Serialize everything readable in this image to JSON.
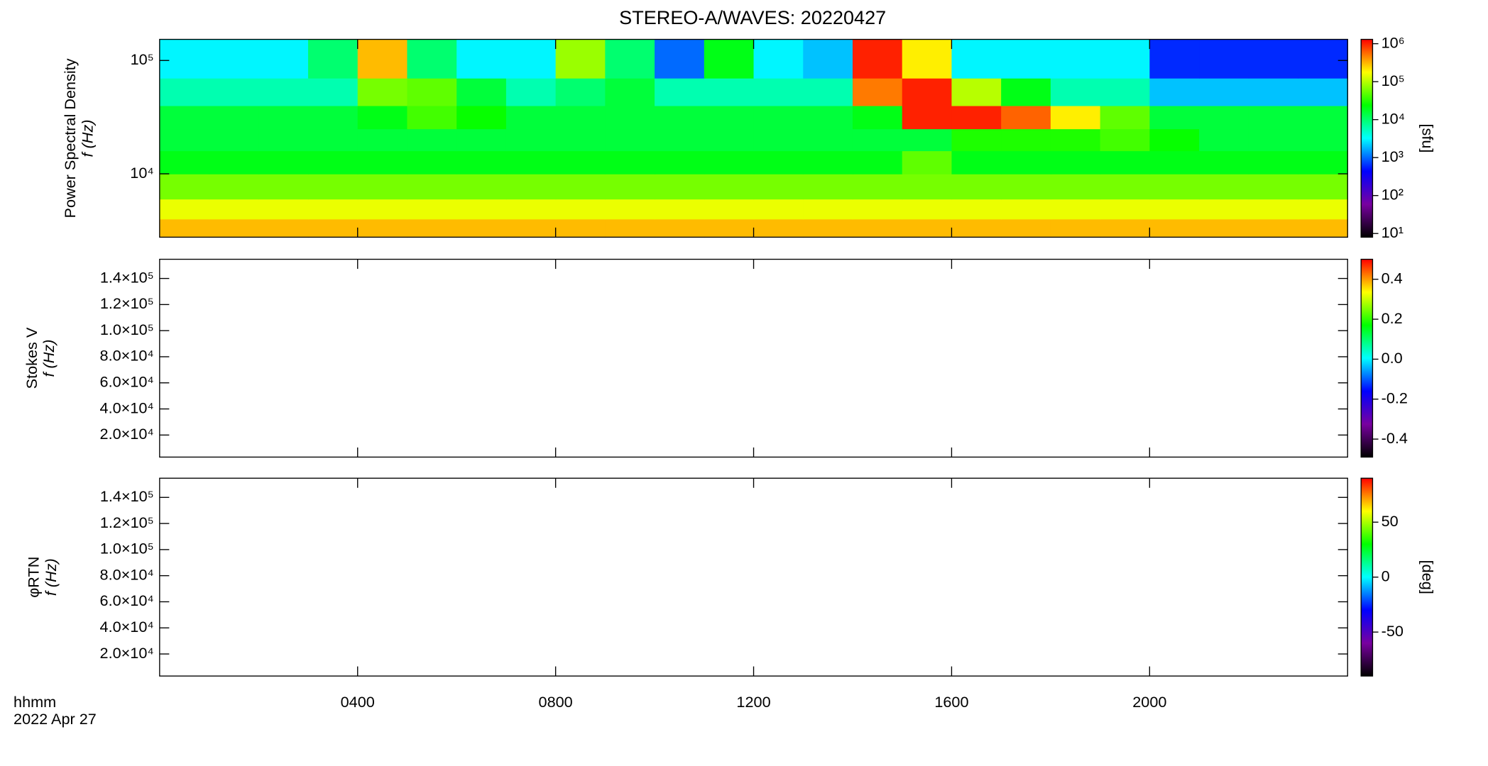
{
  "chart_data": [
    {
      "type": "heatmap",
      "title": "STEREO-A/WAVES: 20220427",
      "ylabel": [
        "Power Spectral Density",
        "f (Hz)"
      ],
      "yscale": "log",
      "ylim": [
        2760,
        153500
      ],
      "yticks": [
        {
          "value": 10000,
          "label": "10⁴"
        },
        {
          "value": 100000,
          "label": "10⁵"
        }
      ],
      "time_bins": [
        0,
        1,
        2,
        3,
        4,
        5,
        6,
        7,
        8,
        9,
        10,
        11,
        12,
        13,
        14,
        15,
        16,
        17,
        18,
        19,
        20,
        21,
        22,
        23,
        24
      ],
      "freq_bins": [
        2760,
        4000,
        6000,
        10000,
        16000,
        25000,
        40000,
        70000,
        153500
      ],
      "values": [
        [
          300000,
          300000,
          300000,
          300000,
          300000,
          300000,
          300000,
          300000,
          300000,
          300000,
          300000,
          300000,
          300000,
          300000,
          300000,
          300000,
          300000,
          300000,
          300000,
          300000,
          300000,
          300000,
          300000,
          300000
        ],
        [
          150000,
          150000,
          150000,
          150000,
          150000,
          150000,
          150000,
          150000,
          150000,
          150000,
          150000,
          150000,
          150000,
          150000,
          150000,
          150000,
          150000,
          150000,
          150000,
          150000,
          150000,
          150000,
          150000,
          150000
        ],
        [
          60000,
          60000,
          60000,
          60000,
          60000,
          60000,
          60000,
          60000,
          60000,
          60000,
          60000,
          60000,
          60000,
          60000,
          60000,
          60000,
          60000,
          60000,
          60000,
          60000,
          60000,
          60000,
          60000,
          60000
        ],
        [
          20000,
          20000,
          20000,
          20000,
          20000,
          20000,
          20000,
          20000,
          20000,
          20000,
          20000,
          20000,
          20000,
          20000,
          20000,
          50000,
          20000,
          20000,
          20000,
          20000,
          20000,
          20000,
          20000,
          20000
        ],
        [
          15000,
          15000,
          15000,
          15000,
          15000,
          15000,
          15000,
          15000,
          15000,
          15000,
          15000,
          15000,
          15000,
          15000,
          15000,
          15000,
          30000,
          30000,
          30000,
          40000,
          25000,
          15000,
          15000,
          15000
        ],
        [
          15000,
          15000,
          15000,
          15000,
          20000,
          40000,
          25000,
          15000,
          15000,
          15000,
          15000,
          15000,
          15000,
          15000,
          20000,
          1000000,
          1000000,
          600000,
          200000,
          50000,
          15000,
          15000,
          15000,
          15000
        ],
        [
          6000,
          6000,
          6000,
          6000,
          60000,
          50000,
          15000,
          6000,
          10000,
          15000,
          6000,
          6000,
          6000,
          6000,
          500000,
          1000000,
          100000,
          20000,
          6000,
          6000,
          2000,
          2000,
          2000,
          2000
        ],
        [
          3000,
          3000,
          3000,
          10000,
          300000,
          10000,
          3000,
          3000,
          80000,
          10000,
          1000,
          20000,
          3000,
          2000,
          1000000,
          200000,
          3000,
          3000,
          3000,
          3000,
          600,
          600,
          600,
          600
        ]
      ],
      "zscale": "log",
      "zlim": [
        8,
        1300000
      ],
      "zticks": [
        {
          "value": 10,
          "label": "10¹"
        },
        {
          "value": 100,
          "label": "10²"
        },
        {
          "value": 1000,
          "label": "10³"
        },
        {
          "value": 10000,
          "label": "10⁴"
        },
        {
          "value": 100000,
          "label": "10⁵"
        },
        {
          "value": 1000000,
          "label": "10⁶"
        }
      ],
      "zlabel": "[sfu]",
      "colormap": [
        "#000000",
        "#7800a0",
        "#0000ff",
        "#00ffff",
        "#00ff00",
        "#ffff00",
        "#ff0000"
      ]
    },
    {
      "type": "heatmap",
      "ylabel": [
        "Stokes V",
        "f (Hz)"
      ],
      "yscale": "linear",
      "ylim": [
        3100,
        154700
      ],
      "yticks": [
        {
          "value": 20000,
          "label": "2.0×10⁴"
        },
        {
          "value": 40000,
          "label": "4.0×10⁴"
        },
        {
          "value": 60000,
          "label": "6.0×10⁴"
        },
        {
          "value": 80000,
          "label": "8.0×10⁴"
        },
        {
          "value": 100000,
          "label": "1.0×10⁵"
        },
        {
          "value": 120000,
          "label": "1.2×10⁵"
        },
        {
          "value": 140000,
          "label": "1.4×10⁵"
        }
      ],
      "zscale": "linear",
      "zlim": [
        -0.49,
        0.5
      ],
      "zticks": [
        -0.4,
        -0.2,
        {
          "value": 0,
          "label": "0.0"
        },
        0.2,
        0.4
      ],
      "colormap": [
        "#000000",
        "#7800a0",
        "#0000ff",
        "#00ffff",
        "#00ff00",
        "#ffff00",
        "#ff0000"
      ]
    },
    {
      "type": "heatmap",
      "ylabel": [
        "φRTN",
        "f (Hz)"
      ],
      "yscale": "linear",
      "ylim": [
        3100,
        154700
      ],
      "yticks": [
        {
          "value": 20000,
          "label": "2.0×10⁴"
        },
        {
          "value": 40000,
          "label": "4.0×10⁴"
        },
        {
          "value": 60000,
          "label": "6.0×10⁴"
        },
        {
          "value": 80000,
          "label": "8.0×10⁴"
        },
        {
          "value": 100000,
          "label": "1.0×10⁵"
        },
        {
          "value": 120000,
          "label": "1.2×10⁵"
        },
        {
          "value": 140000,
          "label": "1.4×10⁵"
        }
      ],
      "zscale": "linear",
      "zlim": [
        -90,
        90
      ],
      "zticks": [
        -50,
        0,
        50
      ],
      "zlabel": "[deg]",
      "colormap": [
        "#000000",
        "#7800a0",
        "#0000ff",
        "#00ffff",
        "#00ff00",
        "#ffff00",
        "#ff0000"
      ],
      "xlim": [
        0,
        24
      ],
      "xticks": [
        {
          "value": 4,
          "label": "0400"
        },
        {
          "value": 8,
          "label": "0800"
        },
        {
          "value": 12,
          "label": "1200"
        },
        {
          "value": 16,
          "label": "1600"
        },
        {
          "value": 20,
          "label": "2000"
        }
      ],
      "xlabel": [
        "hhmm",
        "2022 Apr 27"
      ]
    }
  ]
}
